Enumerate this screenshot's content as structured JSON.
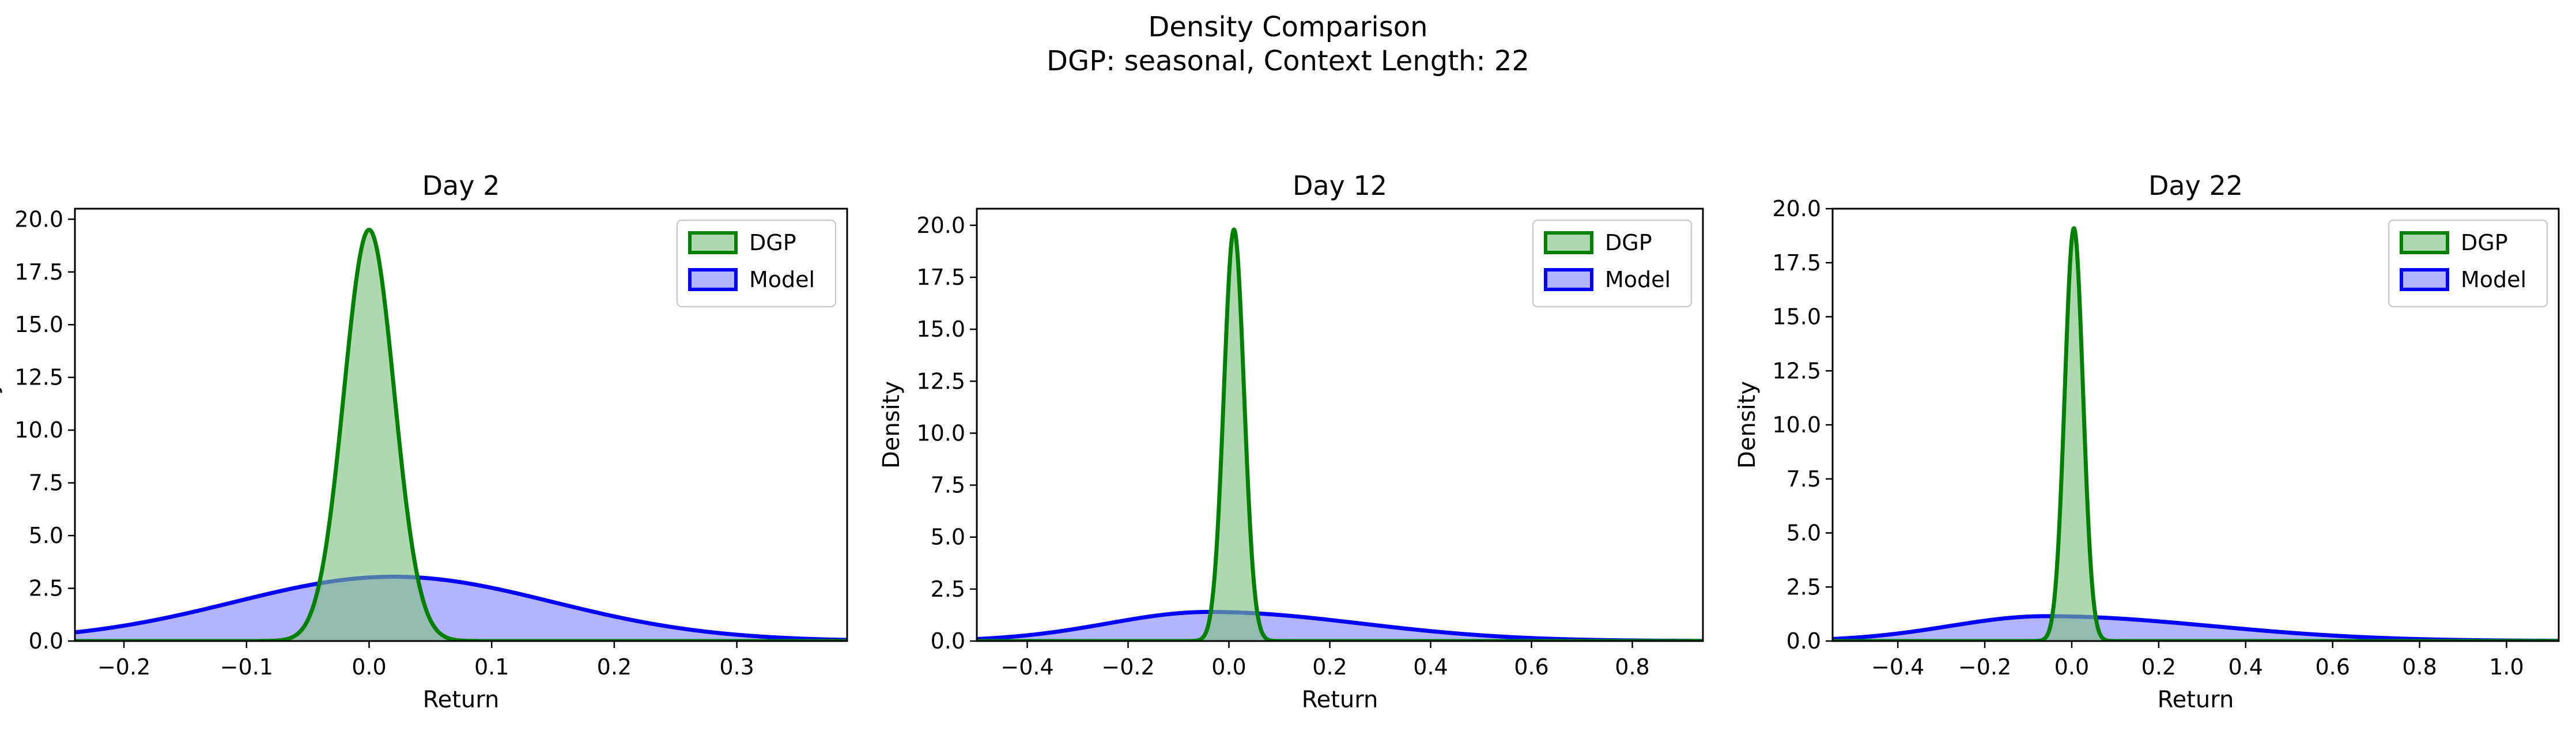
{
  "figure": {
    "title": "Density Comparison",
    "subtitle": "DGP: seasonal, Context Length: 22"
  },
  "colors": {
    "dgp_line": "#008000",
    "dgp_fill": "#80c080",
    "model_line": "#0000ff",
    "model_fill": "#8080ff"
  },
  "chart_data": [
    {
      "type": "area",
      "title": "Day 2",
      "xlabel": "Return",
      "ylabel": "Density",
      "xlim": [
        -0.24,
        0.39
      ],
      "ylim": [
        0,
        20.5
      ],
      "xticks": [
        -0.2,
        -0.1,
        0.0,
        0.1,
        0.2,
        0.3
      ],
      "xtick_labels": [
        "−0.2",
        "−0.1",
        "0.0",
        "0.1",
        "0.2",
        "0.3"
      ],
      "yticks": [
        0,
        2.5,
        5,
        7.5,
        10,
        12.5,
        15,
        17.5,
        20
      ],
      "ytick_labels": [
        "0.0",
        "2.5",
        "5.0",
        "7.5",
        "10.0",
        "12.5",
        "15.0",
        "17.5",
        "20.0"
      ],
      "legend": "top-right",
      "series": [
        {
          "name": "DGP",
          "distribution": "normal",
          "mean": 0.0,
          "std": 0.0205,
          "peak": 19.5
        },
        {
          "name": "Model",
          "distribution": "normal",
          "mean": 0.02,
          "std": 0.13,
          "peak": 3.05
        }
      ]
    },
    {
      "type": "area",
      "title": "Day 12",
      "xlabel": "Return",
      "ylabel": "Density",
      "xlim": [
        -0.5,
        0.94
      ],
      "ylim": [
        0,
        20.8
      ],
      "xticks": [
        -0.4,
        -0.2,
        0.0,
        0.2,
        0.4,
        0.6,
        0.8
      ],
      "xtick_labels": [
        "−0.4",
        "−0.2",
        "0.0",
        "0.2",
        "0.4",
        "0.6",
        "0.8"
      ],
      "yticks": [
        0,
        2.5,
        5,
        7.5,
        10,
        12.5,
        15,
        17.5,
        20
      ],
      "ytick_labels": [
        "0.0",
        "2.5",
        "5.0",
        "7.5",
        "10.0",
        "12.5",
        "15.0",
        "17.5",
        "20.0"
      ],
      "legend": "top-right",
      "series": [
        {
          "name": "DGP",
          "distribution": "normal",
          "mean": 0.01,
          "std": 0.02,
          "peak": 19.8
        },
        {
          "name": "Model",
          "distribution": "skewed",
          "mode": -0.04,
          "std_left": 0.2,
          "std_right": 0.3,
          "peak": 1.4
        }
      ]
    },
    {
      "type": "area",
      "title": "Day 22",
      "xlabel": "Return",
      "ylabel": "Density",
      "xlim": [
        -0.55,
        1.12
      ],
      "ylim": [
        0,
        20.0
      ],
      "xticks": [
        -0.4,
        -0.2,
        0.0,
        0.2,
        0.4,
        0.6,
        0.8,
        1.0
      ],
      "xtick_labels": [
        "−0.4",
        "−0.2",
        "0.0",
        "0.2",
        "0.4",
        "0.6",
        "0.8",
        "1.0"
      ],
      "yticks": [
        0,
        2.5,
        5,
        7.5,
        10,
        12.5,
        15,
        17.5,
        20
      ],
      "ytick_labels": [
        "0.0",
        "2.5",
        "5.0",
        "7.5",
        "10.0",
        "12.5",
        "15.0",
        "17.5",
        "20.0"
      ],
      "legend": "top-right",
      "series": [
        {
          "name": "DGP",
          "distribution": "normal",
          "mean": 0.005,
          "std": 0.021,
          "peak": 19.1
        },
        {
          "name": "Model",
          "distribution": "skewed",
          "mode": -0.06,
          "std_left": 0.22,
          "std_right": 0.38,
          "peak": 1.15
        }
      ]
    }
  ]
}
